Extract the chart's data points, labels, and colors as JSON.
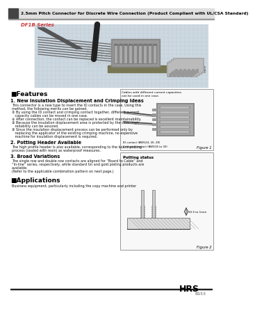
{
  "title": "2.5mm Pitch Connector for Discrete Wire Connection (Product Compliant with UL/CSA Standard)",
  "series_name": "DF1B Series",
  "bg_color": "#ffffff",
  "features_header": "■Features",
  "feature1_title": "1. New Insulation Displacement and Crimping Ideas",
  "feature2_title": "2. Potting Header Available",
  "feature3_title": "3. Broad Variations",
  "applications_header": "■Applications",
  "applications_body": "Business equipment, particularly including the copy machine and printer",
  "footer_brand": "HRS",
  "footer_code": "B153",
  "fig1_caption": "Figure 1",
  "fig2_caption": "Figure 2",
  "fig1_note1": "Cables with different current capacities",
  "fig1_note2": "can be used in one case.",
  "fig1_note3": "ID contact (AWG24, 26, 28)",
  "fig1_note4": "Crimping contact (AWG16 to 30)",
  "fig2_title": "Potting status",
  "fig2_note": "10.5 to 1mm",
  "body1_lines": [
    "This connector is a new type to insert the ID contacts in the case. Using this",
    "method, the following merits can be gained.",
    "① By using the ID contact and crimping contact together, different current",
    "   capacity cables can be moved in one case.",
    "② After connection, the contact can be replaced is excellent maintainability.",
    "③ Because the insulation displacement area is protected by the case, high",
    "   reliability can be assured.",
    "④ Since the insulation displacement process can be performed only by",
    "   replacing the applicator of the existing crimping machine, no expensive",
    "   machine for insulation displacement is required."
  ],
  "body2_lines": [
    "The high profile header is also available, corresponding to the board potting",
    "process (sealed with resin) as waterproof measures."
  ],
  "body3_lines": [
    "The single row and double row contacts are aligned for “Board to Cable” and",
    "“In-line” series, respectively, while standard tin and gold plating products are",
    "available.",
    "(Refer to the applicable combination pattern on next page.)"
  ]
}
